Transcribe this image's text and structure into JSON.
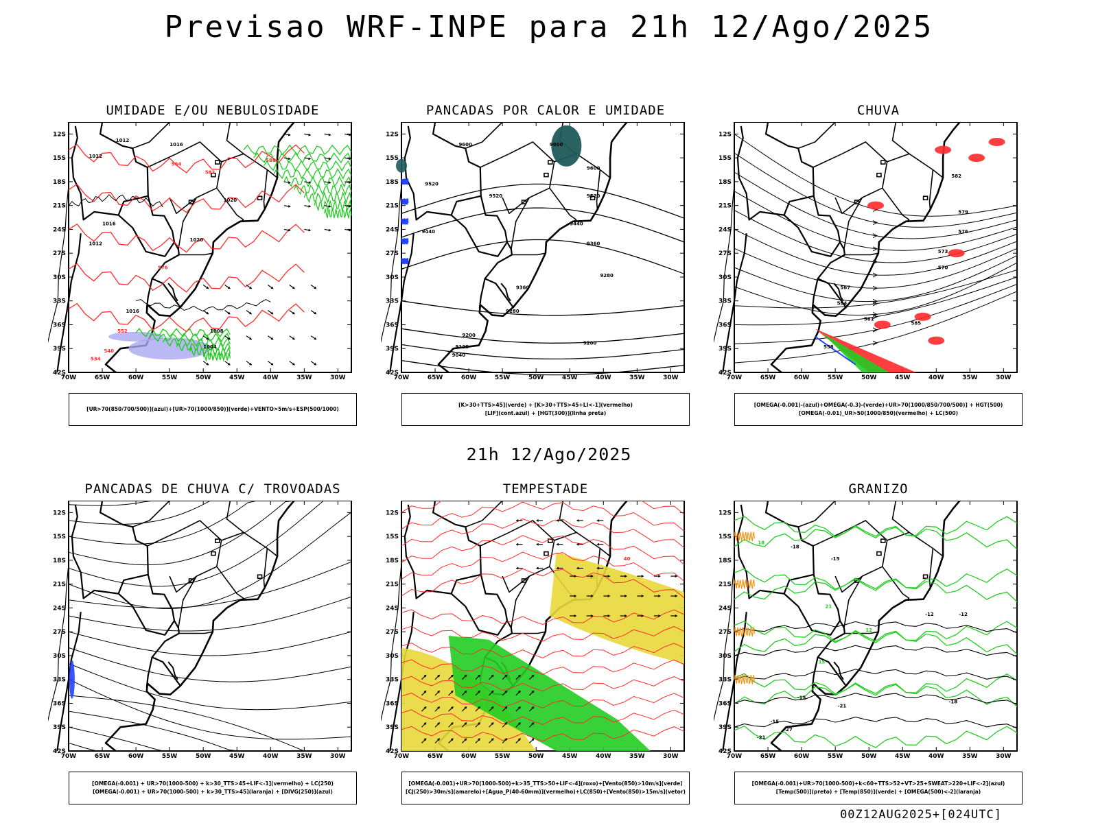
{
  "header": {
    "title": "Previsao WRF-INPE  para 21h 12/Ago/2025"
  },
  "mid_title": "21h 12/Ago/2025",
  "footer": "00Z12AUG2025+[024UTC]",
  "axes": {
    "lat_labels": [
      "12S",
      "15S",
      "18S",
      "21S",
      "24S",
      "27S",
      "30S",
      "33S",
      "36S",
      "39S",
      "42S"
    ],
    "lon_labels": [
      "70W",
      "65W",
      "60W",
      "55W",
      "50W",
      "45W",
      "40W",
      "35W",
      "30W"
    ]
  },
  "panels": [
    {
      "id": "umidade",
      "title": "UMIDADE E/OU NEBULOSIDADE",
      "legend": [
        "[UR>70(850/700/500)](azul)+[UR>70(1000/850)](verde)+VENTO>5m/s+ESP(500/1000)"
      ],
      "contour_labels": [
        "1012",
        "1012",
        "1016",
        "1020",
        "1016",
        "1020",
        "1012",
        "1016",
        "1008",
        "1004",
        "564",
        "576",
        "552",
        "540",
        "534",
        "588",
        "582"
      ]
    },
    {
      "id": "pancadas-calor",
      "title": "PANCADAS POR CALOR E UMIDADE",
      "legend": [
        "[K>30+TTS>45](verde) + [K>30+TTS>45+LI<-1](vermelho)",
        "[LIF](cont.azul) + [HGT(300)](linha preta)"
      ],
      "contour_labels": [
        "9600",
        "9600",
        "9600",
        "9520",
        "9520",
        "9520",
        "9440",
        "9440",
        "9360",
        "9360",
        "9280",
        "9280",
        "9200",
        "9200",
        "9120",
        "9040"
      ]
    },
    {
      "id": "chuva",
      "title": "CHUVA",
      "legend": [
        "[OMEGA(-0.001)-(azul)+OMEGA(-0.3)-(verde)+UR>70(1000/850/700/500)] + HGT(500)",
        "[OMEGA(-0.01)_UR>50(1000/850)(vermelho) + LC(500)"
      ],
      "contour_labels": [
        "582",
        "579",
        "576",
        "573",
        "570",
        "567",
        "564",
        "561",
        "558",
        "585"
      ]
    },
    {
      "id": "pancadas-trovoadas",
      "title": "PANCADAS DE CHUVA C/ TROVOADAS",
      "legend": [
        "[OMEGA(-0.001) + UR>70(1000-500) + k>30_TTS>45+LIF<-1](vermelho) + LC(250)",
        "[OMEGA(-0.001) + UR>70(1000-500) + k>30_TTS>45](laranja) + [DIVG(250)](azul)"
      ],
      "contour_labels": []
    },
    {
      "id": "tempestade",
      "title": "TEMPESTADE",
      "legend": [
        "[OMEGA(-0.001)+UR>70(1000-500)+k>35_TTS>50+LIF<-4](roxo)+[Vento(850)>10m/s](verde)",
        "[CJ(250)>30m/s](amarelo)+[Agua_P(40-60mm)](vermelho)+LC(850)+[Vento(850)>15m/s](vetor)"
      ],
      "contour_labels": [
        "40"
      ]
    },
    {
      "id": "granizo",
      "title": "GRANIZO",
      "legend": [
        "[OMEGA(-0.001)+UR>70(1000-500)+k<60+TTS>52+VT>25+SWEAT>220+LIF<-2](azul)",
        "[Temp(500)](preto) + [Temp(850)](verde) + [OMEGA(500)<-2](laranja)"
      ],
      "contour_labels": [
        "-18",
        "-15",
        "-12",
        "-21",
        "-27",
        "12",
        "15",
        "18",
        "21",
        "-15",
        "-12",
        "-18",
        "-15",
        "-21"
      ]
    }
  ],
  "colors": {
    "red": "#ff2a2a",
    "green": "#22cc22",
    "blue": "#2244ff",
    "lavender": "#a9a8f0",
    "yellow": "#e8d83a",
    "teal": "#1f5a5a",
    "orange": "#ff8800"
  }
}
